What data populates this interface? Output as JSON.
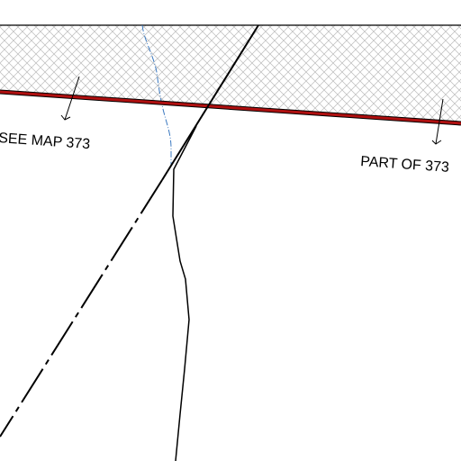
{
  "labels": [
    {
      "text": "SEE MAP 373"
    },
    {
      "text": "PART OF 373"
    }
  ]
}
